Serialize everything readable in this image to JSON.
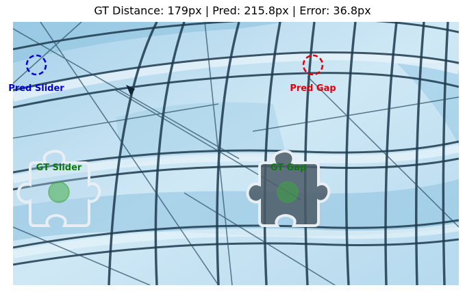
{
  "header": {
    "title": "GT Distance: 179px | Pred: 215.8px | Error: 36.8px"
  },
  "markers": {
    "pred_slider": {
      "label": "Pred Slider",
      "color": "#0000dd"
    },
    "pred_gap": {
      "label": "Pred Gap",
      "color": "#e0000a"
    },
    "gt_slider": {
      "label": "GT Slider",
      "color": "#0a7a0a"
    },
    "gt_gap": {
      "label": "GT Gap",
      "color": "#0a7a0a"
    }
  },
  "colors": {
    "background": "#bfe0f1",
    "glass_dark": "#7fb6d6",
    "frame": "#1d3a4e",
    "puzzle_outline": "#e8eef2",
    "gap_fill": "#4a5a66"
  }
}
